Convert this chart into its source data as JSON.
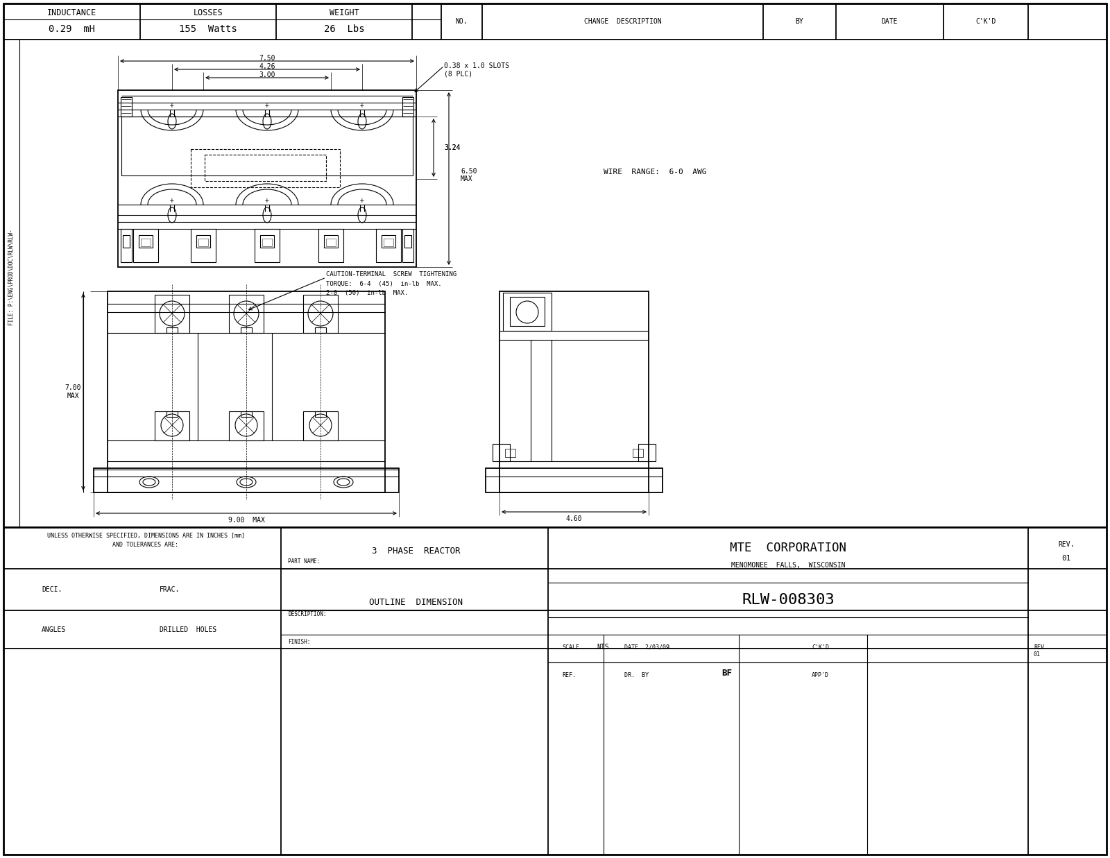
{
  "bg_color": "#ffffff",
  "line_color": "#000000",
  "font_mono": "DejaVu Sans Mono",
  "header": {
    "inductance_label": "INDUCTANCE",
    "inductance_val": "0.29  mH",
    "losses_label": "LOSSES",
    "losses_val": "155  Watts",
    "weight_label": "WEIGHT",
    "weight_val": "26  Lbs",
    "no_label": "NO.",
    "change_label": "CHANGE  DESCRIPTION",
    "by_label": "BY",
    "date_label": "DATE",
    "ckd_label": "C'K'D"
  },
  "annotations": {
    "dim_750": "7.50",
    "dim_426": "4.26",
    "dim_300": "3.00",
    "slots": "0.38 x 1.0 SLOTS\n(8 PLC)",
    "dim_324": "3.24",
    "dim_650": "6.50\nMAX",
    "wire_range": "WIRE  RANGE:  6-0  AWG",
    "caution_line1": "CAUTION-TERMINAL  SCREW  TIGHTENING",
    "caution_line2": "TORQUE:  6-4  (45)  in-lb  MAX.",
    "caution_line3": "2-0  (50)  in-lb  MAX.",
    "dim_700": "7.00\nMAX",
    "dim_900": "9.00  MAX",
    "dim_460": "4.60"
  },
  "title_block": {
    "unless": "UNLESS OTHERWISE SPECIFIED, DIMENSIONS ARE IN INCHES [mm]",
    "tolerances": "AND TOLERANCES ARE:",
    "deci_label": "DECI.",
    "frac_label": "FRAC.",
    "angles_label": "ANGLES",
    "drilled_label": "DRILLED  HOLES",
    "part_name_label": "PART NAME:",
    "part_name": "3  PHASE  REACTOR",
    "description_label": "DESCRIPTION:",
    "description": "OUTLINE  DIMENSION",
    "finish_label": "FINISH:",
    "company": "MTE  CORPORATION",
    "location": "MENOMONEE  FALLS,  WISCONSIN",
    "part_number": "RLW-008303",
    "rev_label": "REV.",
    "rev_val": "01",
    "scale_label": "SCALE",
    "scale_val": "NTS",
    "date_val": "DATE  2/03/09",
    "ckd_label": "C'K'D",
    "ref_label": "REF.",
    "drby_label": "DR.  BY",
    "drby_val": "BF",
    "appd_label": "APP'D"
  },
  "sidebar_text": "FILE: P:\\ENG\\PROD\\DOC\\RLW\\RLW-"
}
